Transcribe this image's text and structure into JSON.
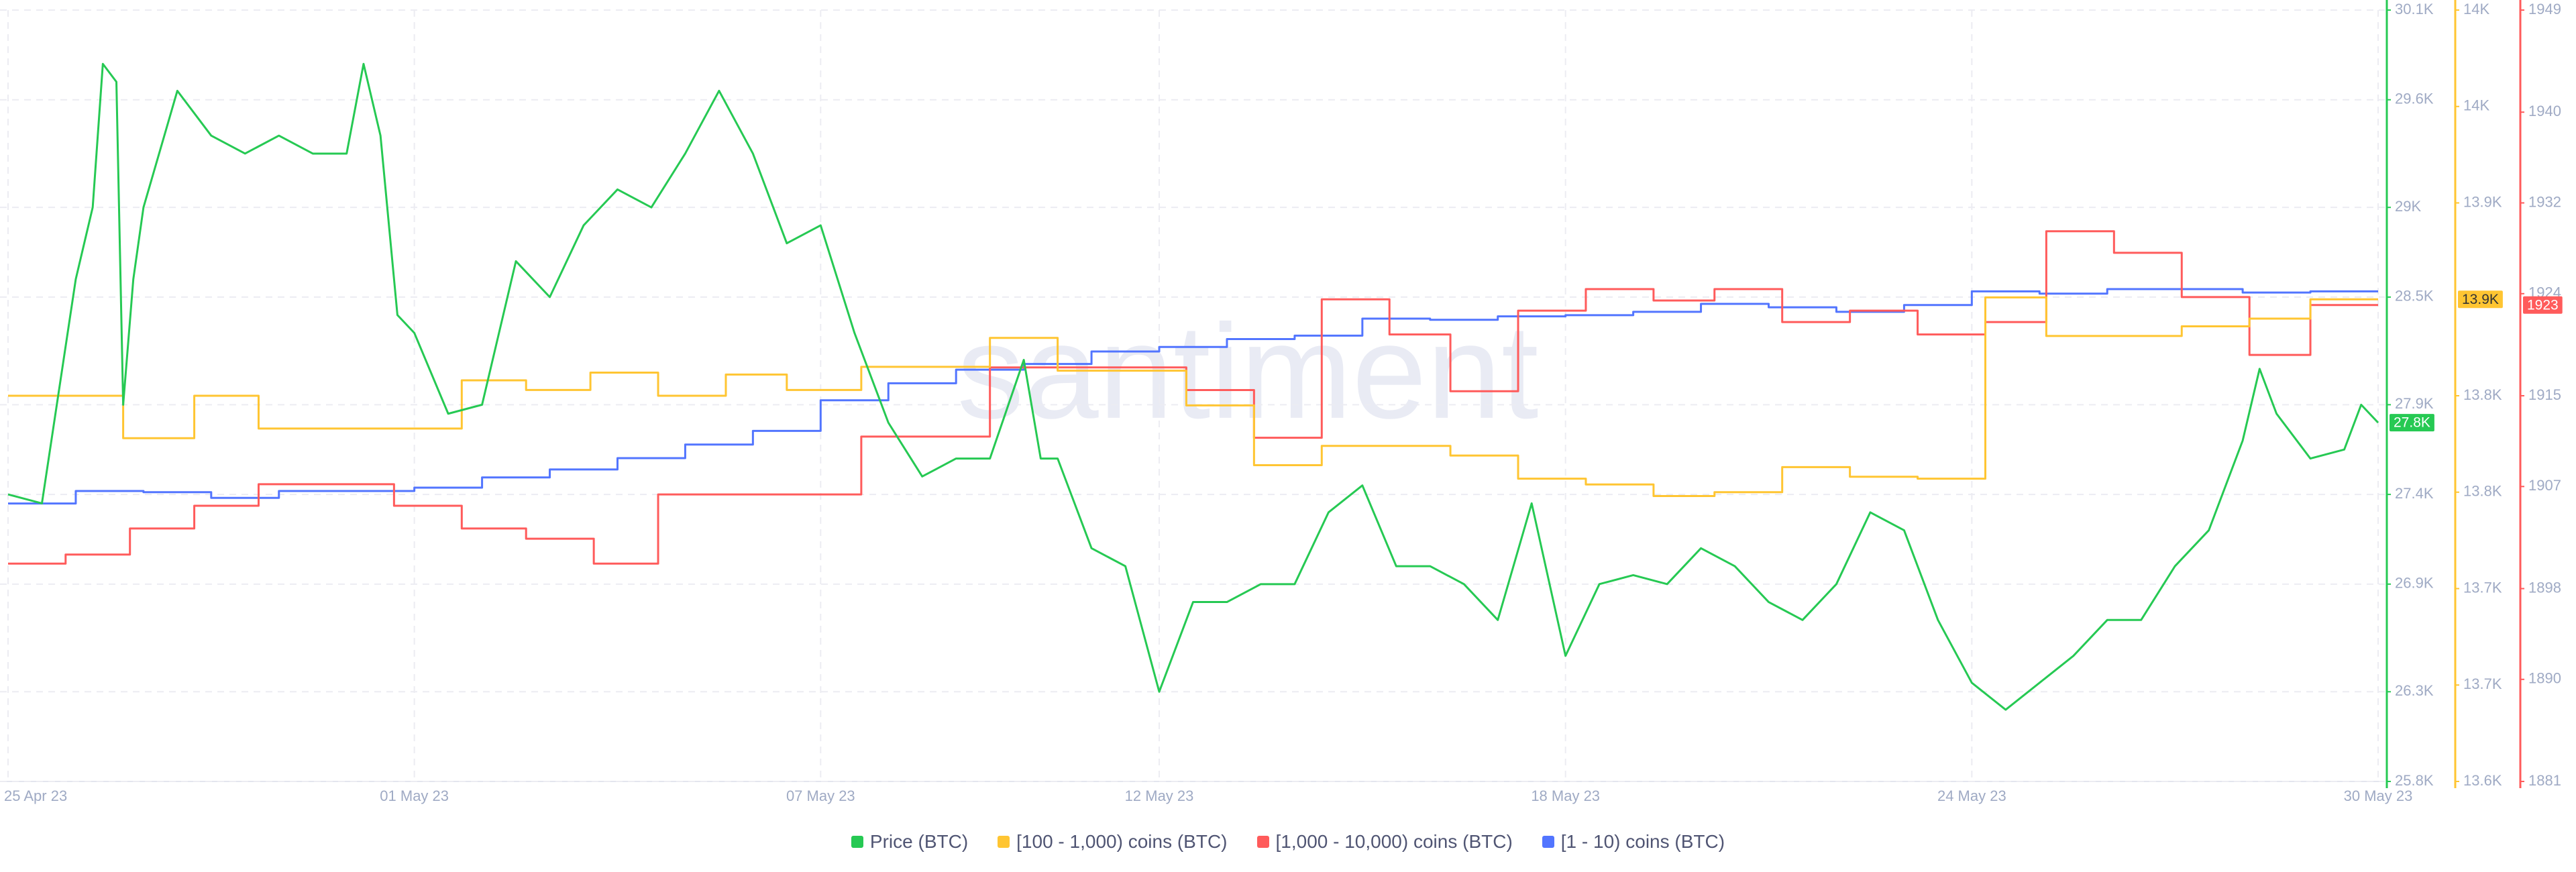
{
  "chart_data": {
    "type": "line",
    "watermark": "santiment",
    "xlim": [
      0,
      35
    ],
    "xticks": [
      {
        "value": 0,
        "label": "25 Apr 23"
      },
      {
        "value": 6,
        "label": "01 May 23"
      },
      {
        "value": 12,
        "label": "07 May 23"
      },
      {
        "value": 17,
        "label": "12 May 23"
      },
      {
        "value": 23,
        "label": "18 May 23"
      },
      {
        "value": 29,
        "label": "24 May 23"
      },
      {
        "value": 35,
        "label": "30 May 23"
      }
    ],
    "ylim": [
      25800,
      30100
    ],
    "yticks": [
      {
        "value": 25800,
        "label": "25.8K"
      },
      {
        "value": 26300,
        "label": "26.3K"
      },
      {
        "value": 26900,
        "label": "26.9K"
      },
      {
        "value": 27400,
        "label": "27.4K"
      },
      {
        "value": 27900,
        "label": "27.9K"
      },
      {
        "value": 28500,
        "label": "28.5K"
      },
      {
        "value": 29000,
        "label": "29K"
      },
      {
        "value": 29600,
        "label": "29.6K"
      },
      {
        "value": 30100,
        "label": "30.1K"
      }
    ],
    "y2lim": [
      13600,
      14000
    ],
    "y2ticks": [
      {
        "value": 13600,
        "label": "13.6K"
      },
      {
        "value": 13650,
        "label": "13.7K"
      },
      {
        "value": 13700,
        "label": "13.7K"
      },
      {
        "value": 13750,
        "label": "13.8K"
      },
      {
        "value": 13800,
        "label": "13.8K"
      },
      {
        "value": 13900,
        "label": "13.9K"
      },
      {
        "value": 13950,
        "label": "14K"
      },
      {
        "value": 14000,
        "label": "14K"
      }
    ],
    "y3lim": [
      1881,
      1949
    ],
    "y3ticks": [
      1881,
      1890,
      1898,
      1907,
      1915,
      1924,
      1932,
      1940,
      1949
    ],
    "grid": true,
    "series": [
      {
        "name": "Price (BTC)",
        "color": "#26c953",
        "axis": "y",
        "step": false,
        "badge": "27.8K",
        "x": [
          0,
          0.5,
          1,
          1.25,
          1.4,
          1.6,
          1.7,
          1.85,
          2,
          2.5,
          3,
          3.5,
          4,
          4.5,
          5,
          5.25,
          5.5,
          5.75,
          6,
          6.5,
          7,
          7.5,
          8,
          8.5,
          9,
          9.5,
          10,
          10.5,
          11,
          11.5,
          12,
          12.5,
          13,
          13.5,
          14,
          14.5,
          15,
          15.25,
          15.5,
          16,
          16.5,
          17,
          17.5,
          18,
          18.5,
          19,
          19.5,
          20,
          20.5,
          21,
          21.5,
          22,
          22.5,
          23,
          23.5,
          24,
          24.5,
          25,
          25.5,
          26,
          26.5,
          27,
          27.5,
          28,
          28.5,
          29,
          29.5,
          30,
          30.5,
          31,
          31.5,
          32,
          32.5,
          33,
          33.25,
          33.5,
          34,
          34.5,
          34.75,
          35
        ],
        "values": [
          27400,
          27350,
          28600,
          29000,
          29800,
          29700,
          27900,
          28600,
          29000,
          29650,
          29400,
          29300,
          29400,
          29300,
          29300,
          29800,
          29400,
          28400,
          28300,
          27850,
          27900,
          28700,
          28500,
          28900,
          29100,
          29000,
          29300,
          29650,
          29300,
          28800,
          28900,
          28300,
          27800,
          27500,
          27600,
          27600,
          28150,
          27600,
          27600,
          27100,
          27000,
          26300,
          26800,
          26800,
          26900,
          26900,
          27300,
          27450,
          27000,
          27000,
          26900,
          26700,
          27350,
          26500,
          26900,
          26950,
          26900,
          27100,
          27000,
          26800,
          26700,
          26900,
          27300,
          27200,
          26700,
          26350,
          26200,
          26350,
          26500,
          26700,
          26700,
          27000,
          27200,
          27700,
          28100,
          27850,
          27600,
          27650,
          27900,
          27800
        ]
      },
      {
        "name": "[100 - 1,000) coins (BTC)",
        "color": "#ffc532",
        "axis": "y2",
        "step": true,
        "badge": "13.9K",
        "x": [
          0,
          1.7,
          2.75,
          3.7,
          6.7,
          7.65,
          8.6,
          9.6,
          10.6,
          11.5,
          12.6,
          14.5,
          15.5,
          17.4,
          18.4,
          19.4,
          21.3,
          22.3,
          23.3,
          24.3,
          25.2,
          26.2,
          27.2,
          28.2,
          29.2,
          30.1,
          32.1,
          33.1,
          34,
          35
        ],
        "values": [
          13800,
          13778,
          13800,
          13783,
          13808,
          13803,
          13812,
          13800,
          13811,
          13803,
          13815,
          13830,
          13813,
          13795,
          13764,
          13774,
          13769,
          13757,
          13754,
          13748,
          13750,
          13763,
          13758,
          13757,
          13851,
          13831,
          13836,
          13840,
          13850,
          13850
        ]
      },
      {
        "name": "[1,000 - 10,000) coins (BTC)",
        "color": "#ff5b5b",
        "axis": "y3",
        "step": true,
        "badge": "1923",
        "x": [
          0,
          0.85,
          1.8,
          2.75,
          3.7,
          5.7,
          6.7,
          7.65,
          8.65,
          9.6,
          12.6,
          14.5,
          17.4,
          18.4,
          19.4,
          20.4,
          21.3,
          22.3,
          23.3,
          24.3,
          25.2,
          26.2,
          27.2,
          28.2,
          29.2,
          30.1,
          31.1,
          32.1,
          33.1,
          34,
          35
        ],
        "values": [
          1900.2,
          1901,
          1903.3,
          1905.3,
          1907.2,
          1905.3,
          1903.3,
          1902.4,
          1900.2,
          1906.3,
          1911.4,
          1917.5,
          1915.5,
          1911.3,
          1923.5,
          1920.4,
          1915.4,
          1922.5,
          1924.4,
          1923.4,
          1924.4,
          1921.5,
          1922.5,
          1920.4,
          1921.5,
          1929.5,
          1927.6,
          1923.7,
          1918.6,
          1923,
          1923
        ]
      },
      {
        "name": "[1 - 10) coins (BTC)",
        "color": "#5275ff",
        "axis": "y3",
        "step": true,
        "x": [
          0,
          1,
          2,
          3,
          4,
          6,
          7,
          8,
          9,
          10,
          11,
          12,
          13,
          14,
          15,
          16,
          17,
          18,
          19,
          20,
          21,
          22,
          23,
          24,
          25,
          26,
          27,
          28,
          29,
          30,
          31,
          32,
          33,
          34,
          35
        ],
        "values": [
          1905.5,
          1906.6,
          1906.5,
          1906,
          1906.6,
          1906.9,
          1907.8,
          1908.5,
          1909.5,
          1910.7,
          1911.9,
          1914.6,
          1916.1,
          1917.3,
          1917.8,
          1918.9,
          1919.3,
          1920,
          1920.3,
          1921.8,
          1921.7,
          1922,
          1922.1,
          1922.4,
          1923.1,
          1922.8,
          1922.4,
          1923,
          1924.2,
          1924,
          1924.4,
          1924.4,
          1924.1,
          1924.2,
          1924.2
        ]
      }
    ]
  }
}
